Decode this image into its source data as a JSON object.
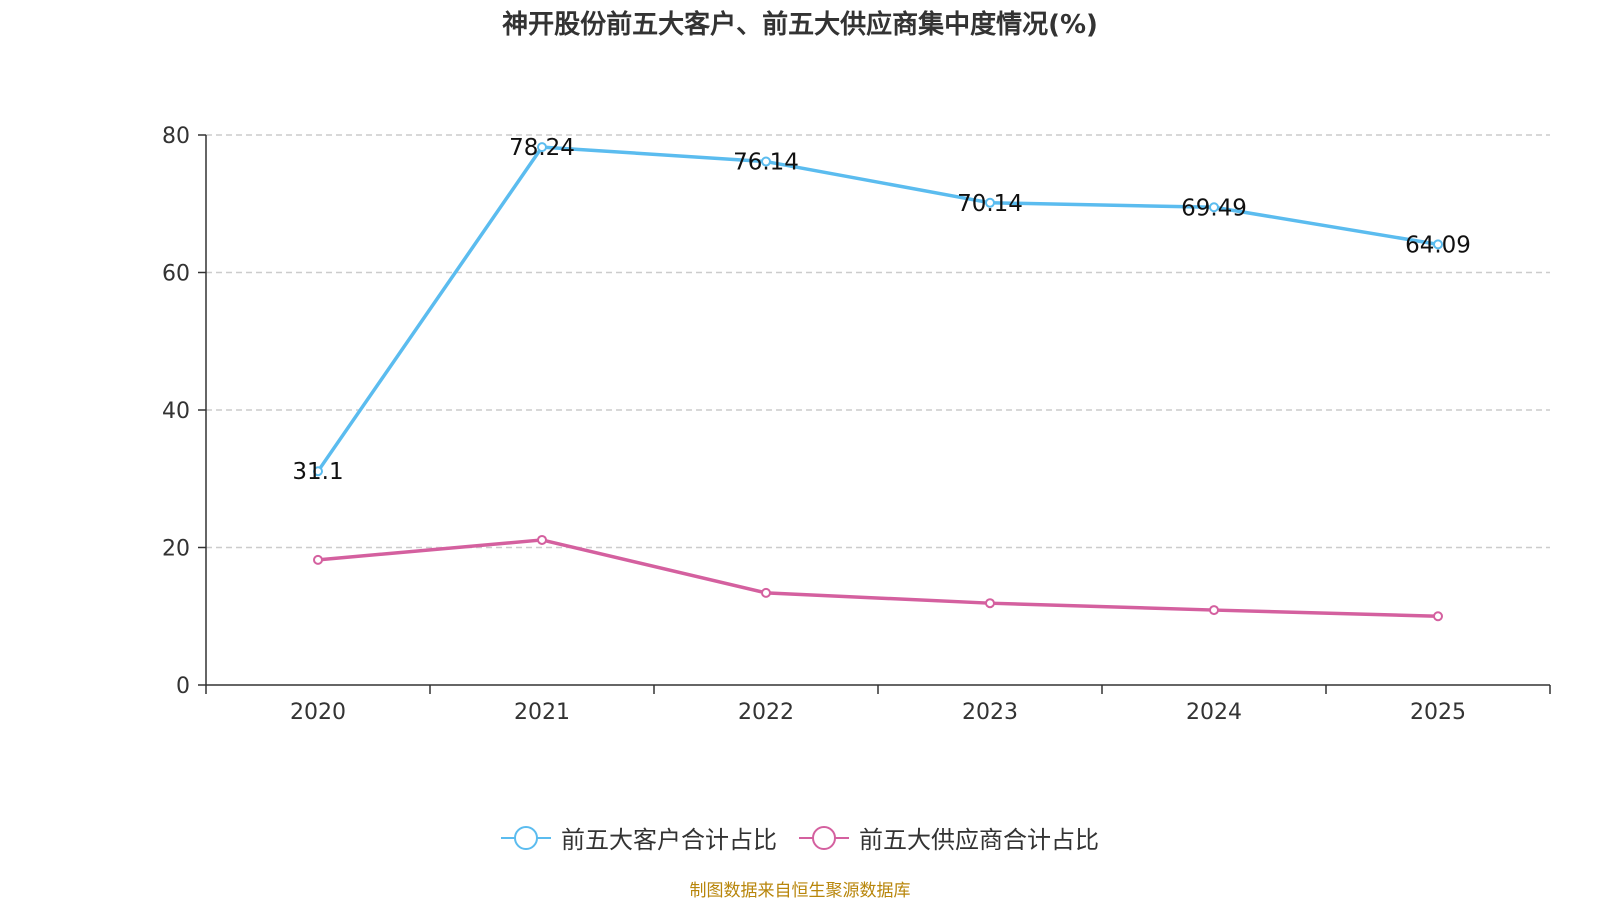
{
  "title": "神开股份前五大客户、前五大供应商集中度情况(%)",
  "source": "制图数据来自恒生聚源数据库",
  "chart_data": {
    "type": "line",
    "categories": [
      "2020",
      "2021",
      "2022",
      "2023",
      "2024",
      "2025"
    ],
    "ylim": [
      0,
      80
    ],
    "yticks": [
      0,
      20,
      40,
      60,
      80
    ],
    "grid": true,
    "legend_position": "bottom-center",
    "series": [
      {
        "name": "前五大客户合计占比",
        "color": "#5bbcef",
        "values": [
          31.1,
          78.24,
          76.14,
          70.14,
          69.49,
          64.09
        ],
        "labels": [
          "31.1",
          "78.24",
          "76.14",
          "70.14",
          "69.49",
          "64.09"
        ]
      },
      {
        "name": "前五大供应商合计占比",
        "color": "#d4609f",
        "values": [
          18.2,
          21.1,
          13.4,
          11.9,
          10.9,
          10.0
        ],
        "labels": []
      }
    ]
  }
}
